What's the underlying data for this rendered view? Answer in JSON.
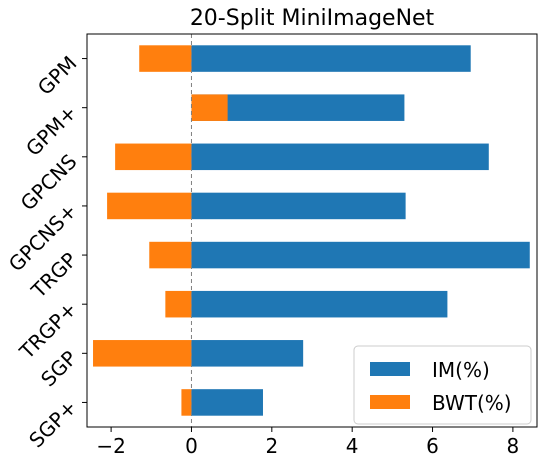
{
  "chart_data": {
    "type": "bar",
    "orientation": "horizontal",
    "stacked": true,
    "title": "20-Split MiniImageNet",
    "categories": [
      "GPM",
      "GPM+",
      "GPCNS",
      "GPCNS+",
      "TRGP",
      "TRGP+",
      "SGP",
      "SGP+"
    ],
    "series": [
      {
        "name": "IM(%)",
        "color": "#1f77b4",
        "values": [
          6.95,
          5.3,
          7.4,
          5.33,
          8.42,
          6.37,
          2.78,
          1.78
        ]
      },
      {
        "name": "BWT(%)",
        "color": "#ff7f0e",
        "values": [
          -1.3,
          0.9,
          -1.9,
          -2.1,
          -1.05,
          -0.65,
          -2.45,
          -0.25
        ]
      }
    ],
    "xlim": [
      -2.6,
      8.6
    ],
    "xticks": [
      -2,
      0,
      2,
      4,
      6,
      8
    ],
    "xtick_labels": [
      "−2",
      "0",
      "2",
      "4",
      "6",
      "8"
    ],
    "zero_line": "dashed",
    "grid": false,
    "legend_position": "bottom-right"
  }
}
